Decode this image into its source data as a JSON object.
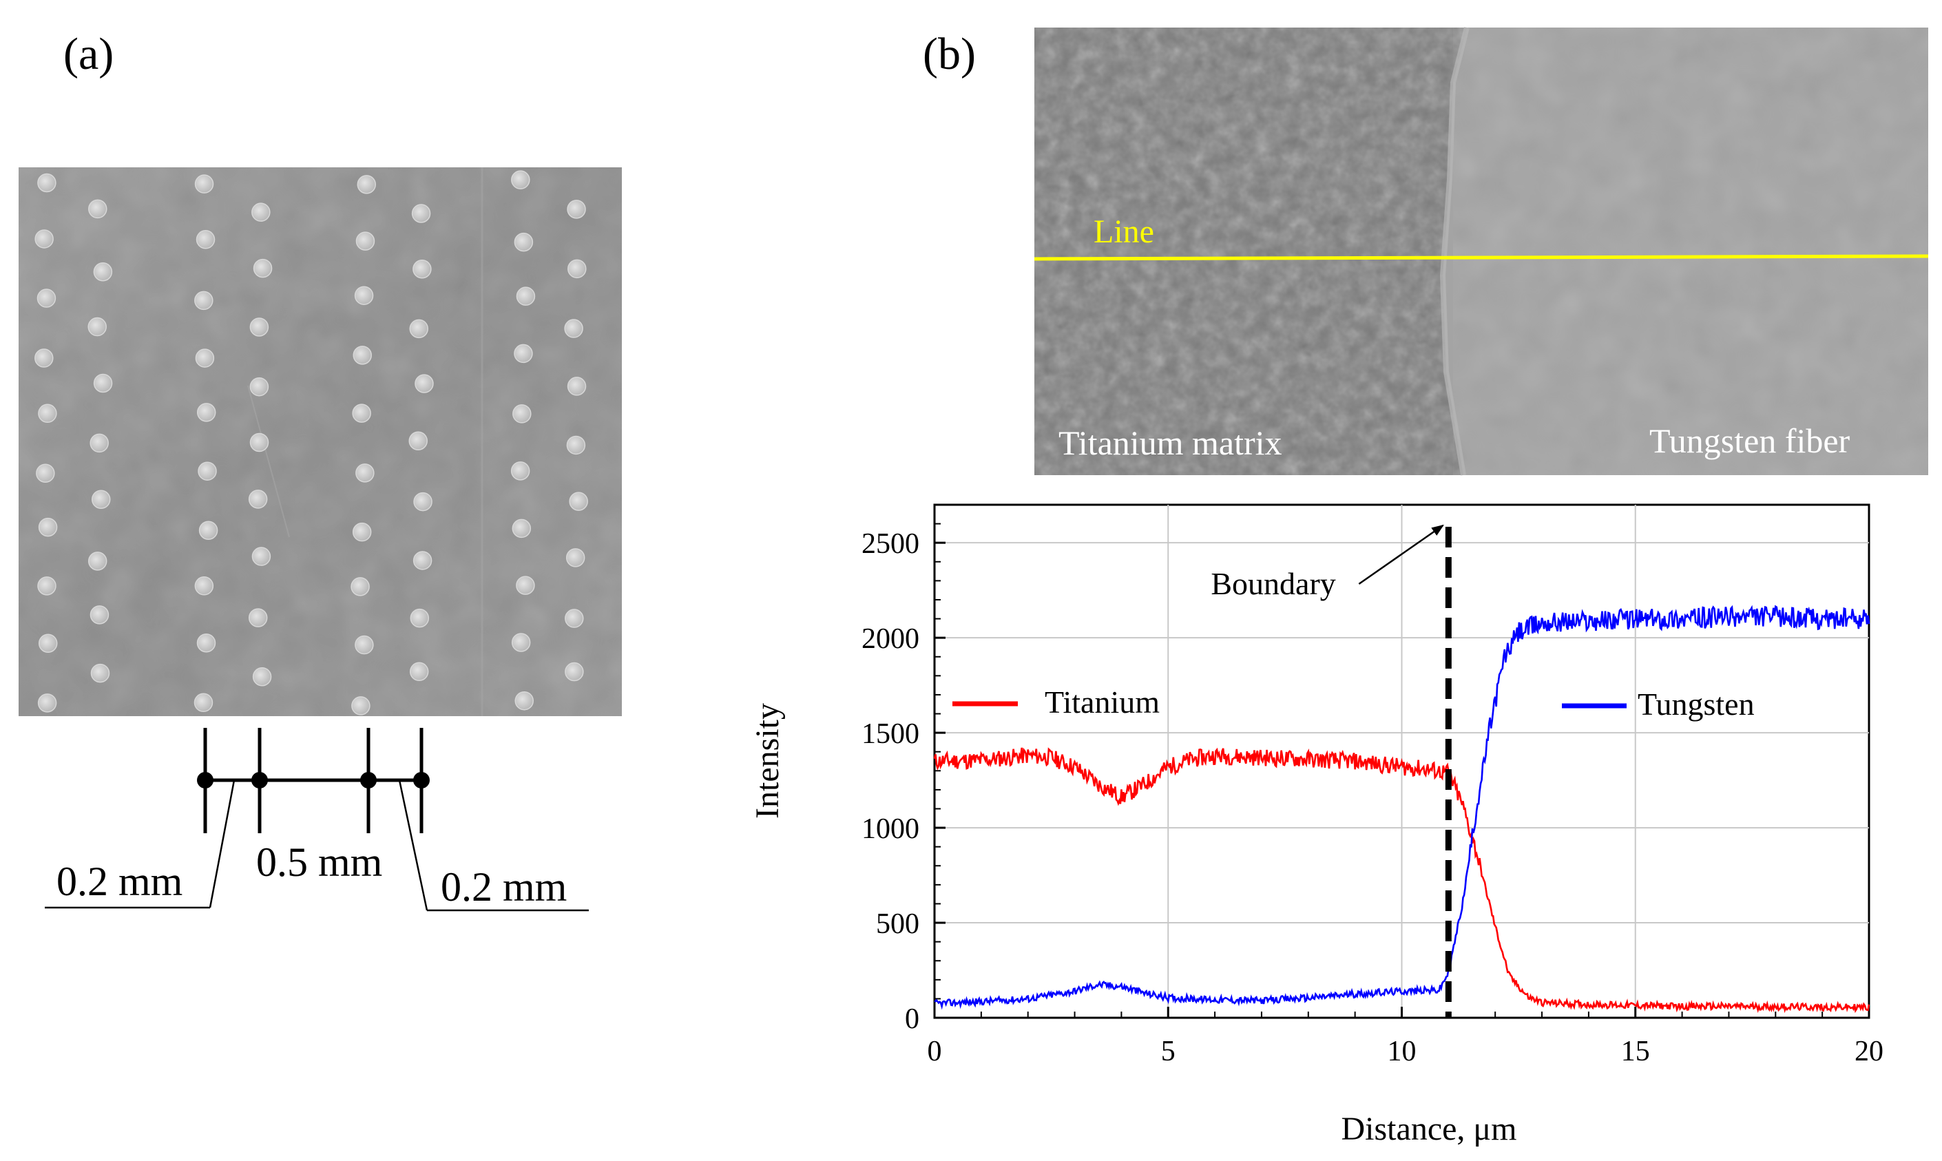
{
  "panel_a": {
    "label": "(a)",
    "dim_left": "0.2 mm",
    "dim_mid": "0.5 mm",
    "dim_right": "0.2 mm"
  },
  "panel_b": {
    "label": "(b)",
    "line_label": "Line",
    "matrix_label": "Titanium matrix",
    "fiber_label": "Tungsten fiber"
  },
  "chart_data": {
    "type": "line",
    "xlabel": "Distance, μm",
    "ylabel": "Intensity",
    "xlim": [
      0,
      20
    ],
    "ylim": [
      0,
      2700
    ],
    "xticks": [
      0,
      5,
      10,
      15,
      20
    ],
    "yticks": [
      0,
      500,
      1000,
      1500,
      2000,
      2500
    ],
    "grid": true,
    "boundary": {
      "x": 11,
      "label": "Boundary"
    },
    "series": [
      {
        "name": "Titanium",
        "color": "#ff0000",
        "x": [
          0,
          1,
          2,
          2.5,
          3,
          3.5,
          4,
          4.5,
          5,
          5.5,
          6,
          7,
          8,
          9,
          10,
          10.5,
          11,
          11.3,
          11.6,
          12,
          12.3,
          12.7,
          13,
          14,
          15,
          16,
          17,
          18,
          19,
          20
        ],
        "values": [
          1350,
          1355,
          1380,
          1370,
          1320,
          1230,
          1160,
          1230,
          1320,
          1360,
          1380,
          1370,
          1360,
          1350,
          1320,
          1310,
          1290,
          1120,
          870,
          480,
          220,
          110,
          80,
          70,
          65,
          60,
          60,
          58,
          56,
          55
        ]
      },
      {
        "name": "Tungsten",
        "color": "#0000ff",
        "x": [
          0,
          1,
          2,
          3,
          3.5,
          4,
          4.5,
          5,
          6,
          7,
          8,
          9,
          10,
          10.8,
          11,
          11.3,
          11.6,
          11.9,
          12.2,
          12.5,
          12.8,
          13,
          14,
          15,
          16,
          17,
          18,
          19,
          20
        ],
        "values": [
          75,
          85,
          100,
          140,
          175,
          165,
          130,
          105,
          95,
          90,
          105,
          125,
          140,
          145,
          240,
          600,
          1100,
          1550,
          1900,
          2030,
          2060,
          2080,
          2090,
          2100,
          2100,
          2110,
          2110,
          2100,
          2100
        ]
      }
    ]
  }
}
